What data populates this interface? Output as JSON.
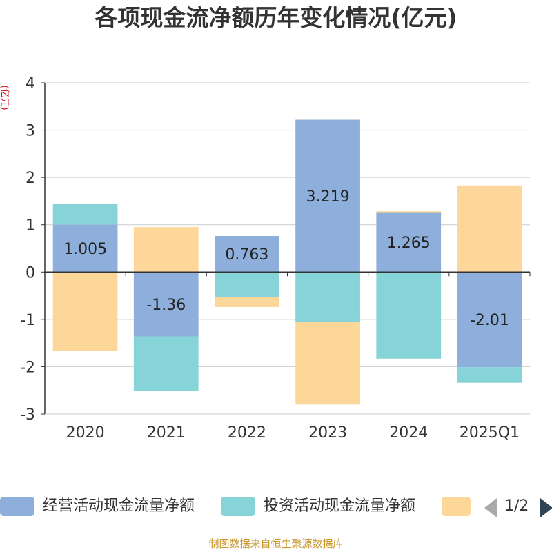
{
  "title": "各项现金流净额历年变化情况(亿元)",
  "y_unit": "(亿元)",
  "source": "制图数据来自恒生聚源数据库",
  "legend": {
    "items": [
      {
        "label": "经营活动现金流量净额",
        "color": "#8eaedb"
      },
      {
        "label": "投资活动现金流量净额",
        "color": "#86d4d8"
      },
      {
        "label": "",
        "color": "#fdd79a"
      }
    ],
    "page": "1/2"
  },
  "chart_data": {
    "type": "bar",
    "stacked": true,
    "categories": [
      "2020",
      "2021",
      "2022",
      "2023",
      "2024",
      "2025Q1"
    ],
    "ylim": [
      -3,
      4
    ],
    "yticks": [
      4,
      3,
      2,
      1,
      0,
      -1,
      -2,
      -3
    ],
    "grid": true,
    "legend_position": "bottom",
    "series": [
      {
        "name": "经营活动现金流量净额",
        "color": "#8eaedb",
        "values": [
          1.005,
          -1.36,
          0.763,
          3.219,
          1.265,
          -2.01
        ],
        "labels": [
          "1.005",
          "-1.36",
          "0.763",
          "3.219",
          "1.265",
          "-2.01"
        ]
      },
      {
        "name": "投资活动现金流量净额",
        "color": "#86d4d8",
        "values": [
          0.44,
          -1.15,
          -0.53,
          -1.05,
          -1.83,
          -0.33
        ]
      },
      {
        "color": "#fdd79a",
        "values": [
          -1.66,
          0.95,
          -0.21,
          -1.75,
          0.02,
          1.83
        ]
      }
    ]
  }
}
